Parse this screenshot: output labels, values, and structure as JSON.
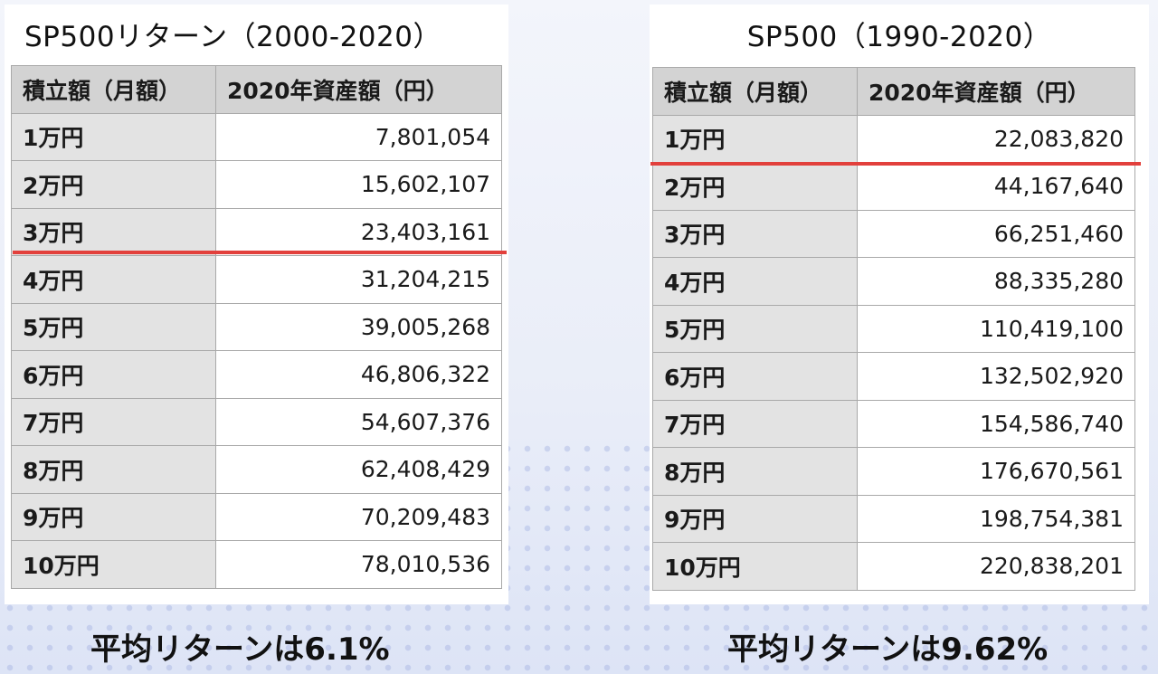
{
  "left": {
    "title": "SP500リターン（2000-2020）",
    "headers": [
      "積立額（月額）",
      "2020年資産額（円）"
    ],
    "rows": [
      {
        "monthly": "1万円",
        "amount": "7,801,054"
      },
      {
        "monthly": "2万円",
        "amount": "15,602,107"
      },
      {
        "monthly": "3万円",
        "amount": "23,403,161"
      },
      {
        "monthly": "4万円",
        "amount": "31,204,215"
      },
      {
        "monthly": "5万円",
        "amount": "39,005,268"
      },
      {
        "monthly": "6万円",
        "amount": "46,806,322"
      },
      {
        "monthly": "7万円",
        "amount": "54,607,376"
      },
      {
        "monthly": "8万円",
        "amount": "62,408,429"
      },
      {
        "monthly": "9万円",
        "amount": "70,209,483"
      },
      {
        "monthly": "10万円",
        "amount": "78,010,536"
      }
    ],
    "caption": "平均リターンは6.1%"
  },
  "right": {
    "title": "SP500（1990-2020）",
    "headers": [
      "積立額（月額）",
      "2020年資産額（円）"
    ],
    "rows": [
      {
        "monthly": "1万円",
        "amount": "22,083,820"
      },
      {
        "monthly": "2万円",
        "amount": "44,167,640"
      },
      {
        "monthly": "3万円",
        "amount": "66,251,460"
      },
      {
        "monthly": "4万円",
        "amount": "88,335,280"
      },
      {
        "monthly": "5万円",
        "amount": "110,419,100"
      },
      {
        "monthly": "6万円",
        "amount": "132,502,920"
      },
      {
        "monthly": "7万円",
        "amount": "154,586,740"
      },
      {
        "monthly": "8万円",
        "amount": "176,670,561"
      },
      {
        "monthly": "9万円",
        "amount": "198,754,381"
      },
      {
        "monthly": "10万円",
        "amount": "220,838,201"
      }
    ],
    "caption": "平均リターンは9.62%"
  },
  "colors": {
    "highlight_line": "#e2403c",
    "header_bg": "#d3d3d3",
    "first_col_bg": "#e3e3e3"
  }
}
